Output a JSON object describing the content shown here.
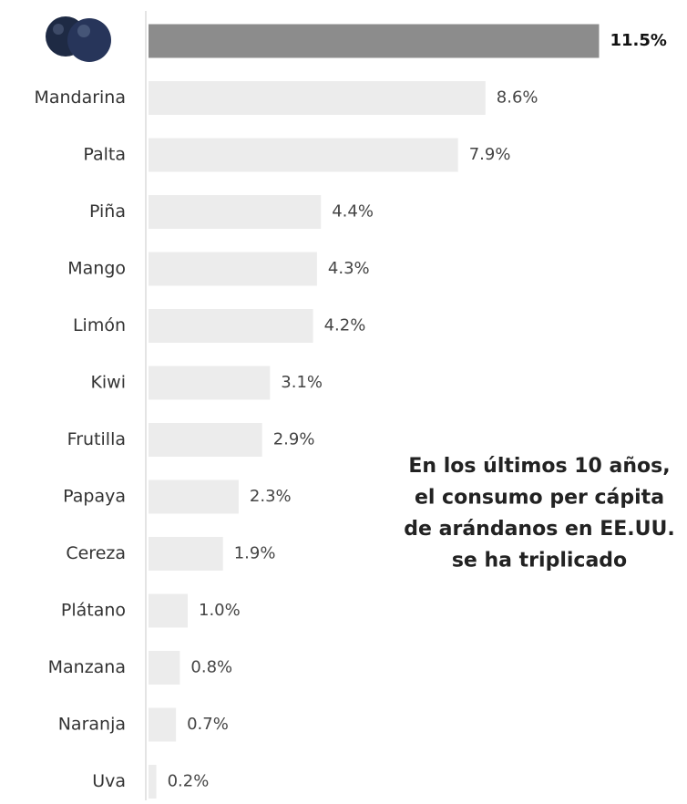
{
  "chart_data": {
    "type": "hbar",
    "categories": [
      null,
      "Mandarina",
      "Palta",
      "Piña",
      "Mango",
      "Limón",
      "Kiwi",
      "Frutilla",
      "Papaya",
      "Cereza",
      "Plátano",
      "Manzana",
      "Naranja",
      "Uva"
    ],
    "values": [
      11.5,
      8.6,
      7.9,
      4.4,
      4.3,
      4.2,
      3.1,
      2.9,
      2.3,
      1.9,
      1.0,
      0.8,
      0.7,
      0.2
    ],
    "value_labels": [
      "11.5%",
      "8.6%",
      "7.9%",
      "4.4%",
      "4.3%",
      "4.2%",
      "3.1%",
      "2.9%",
      "2.3%",
      "1.9%",
      "1.0%",
      "0.8%",
      "0.7%",
      "0.2%"
    ],
    "colors": [
      "#8c8c8c",
      "#ececec",
      "#ececec",
      "#ececec",
      "#ececec",
      "#ececec",
      "#ececec",
      "#ececec",
      "#ececec",
      "#ececec",
      "#ececec",
      "#ececec",
      "#ececec",
      "#ececec"
    ],
    "annotation": [
      "En los últimos 10 años,",
      "el consumo per cápita",
      "de arándanos en EE.UU.",
      "se ha triplicado"
    ]
  }
}
